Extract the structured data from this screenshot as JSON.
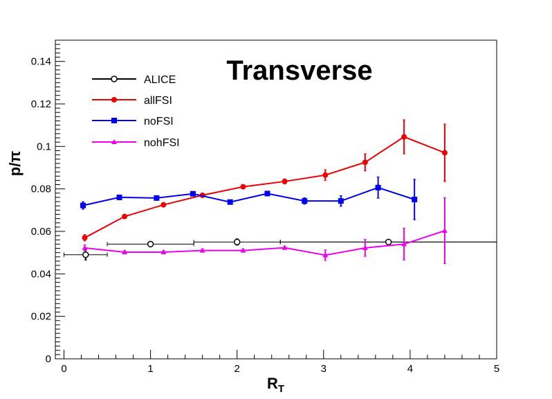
{
  "chart_data": {
    "type": "scatter",
    "title": "Transverse",
    "xlabel_main": "R",
    "xlabel_sub": "T",
    "ylabel": "p/π",
    "xlim": [
      -0.1,
      5
    ],
    "ylim": [
      0,
      0.15
    ],
    "x_ticks": [
      0,
      1,
      2,
      3,
      4,
      5
    ],
    "x_tick_labels": [
      "0",
      "1",
      "2",
      "3",
      "4",
      "5"
    ],
    "y_ticks": [
      0,
      0.02,
      0.04,
      0.06,
      0.08,
      0.1,
      0.12,
      0.14
    ],
    "y_tick_labels": [
      "0",
      "0.02",
      "0.04",
      "0.06",
      "0.08",
      "0.1",
      "0.12",
      "0.14"
    ],
    "grid": false,
    "legend_position": "top-left",
    "series": [
      {
        "name": "ALICE",
        "color": "#000000",
        "marker": "open-circle",
        "connect": false,
        "x": [
          0.25,
          1.0,
          2.0,
          3.75
        ],
        "y": [
          0.049,
          0.054,
          0.055,
          0.055
        ],
        "xerr": [
          0.25,
          0.5,
          0.5,
          1.25
        ],
        "yerr": [
          0.0025,
          0.0012,
          0.0015,
          0.0012
        ]
      },
      {
        "name": "allFSI",
        "color": "#ee0000",
        "marker": "filled-circle",
        "connect": true,
        "x": [
          0.24,
          0.7,
          1.15,
          1.6,
          2.07,
          2.55,
          3.02,
          3.48,
          3.93,
          4.4
        ],
        "y": [
          0.057,
          0.067,
          0.0725,
          0.077,
          0.081,
          0.0835,
          0.0865,
          0.0925,
          0.1045,
          0.097
        ],
        "yerr": [
          0.0015,
          0.0008,
          0.0008,
          0.0008,
          0.0008,
          0.0012,
          0.0025,
          0.004,
          0.008,
          0.0135
        ]
      },
      {
        "name": "noFSI",
        "color": "#0000ee",
        "marker": "filled-square",
        "connect": true,
        "x": [
          0.22,
          0.64,
          1.07,
          1.49,
          1.92,
          2.35,
          2.78,
          3.2,
          3.63,
          4.05
        ],
        "y": [
          0.0722,
          0.076,
          0.0757,
          0.0777,
          0.0738,
          0.0778,
          0.0743,
          0.0743,
          0.0806,
          0.075
        ],
        "yerr": [
          0.0018,
          0.0008,
          0.0008,
          0.0008,
          0.0008,
          0.0008,
          0.0015,
          0.0025,
          0.005,
          0.0095
        ]
      },
      {
        "name": "nohFSI",
        "color": "#ee00ee",
        "marker": "filled-triangle",
        "connect": true,
        "x": [
          0.24,
          0.7,
          1.15,
          1.6,
          2.07,
          2.55,
          3.02,
          3.48,
          3.93,
          4.4
        ],
        "y": [
          0.0522,
          0.0502,
          0.0502,
          0.051,
          0.051,
          0.0523,
          0.0488,
          0.0522,
          0.054,
          0.0603
        ],
        "yerr": [
          0.0015,
          0.0008,
          0.0008,
          0.0008,
          0.0008,
          0.0008,
          0.0025,
          0.004,
          0.0075,
          0.0155
        ]
      }
    ]
  }
}
